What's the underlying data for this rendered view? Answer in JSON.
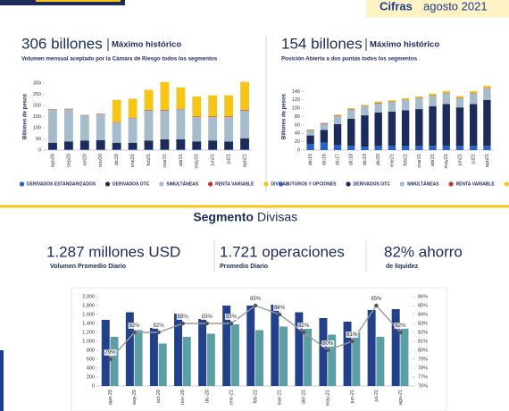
{
  "header": {
    "title_bold": "Cifras",
    "title_rest": "agosto 2021"
  },
  "chart_data": [
    {
      "type": "bar",
      "stacked": true,
      "title": "306 billones",
      "title_note": "Máximo histórico",
      "subtitle": "Volumen mensual aceptado por la Cámara de Riesgo todos los segmentos",
      "y_label": "Billones de pesos",
      "categories": [
        "ago20",
        "sep20",
        "oct20",
        "nov20",
        "dic20",
        "ene21",
        "feb21",
        "mar21",
        "abr21",
        "may21",
        "jun21",
        "jul21",
        "ago21"
      ],
      "series": [
        {
          "name": "DERIVADOS ESTANDARIZADOS",
          "color": "#2563c9",
          "values": [
            3,
            3,
            3,
            3,
            3,
            3,
            3,
            3,
            3,
            3,
            3,
            3,
            3
          ]
        },
        {
          "name": "DERIVADOS OTC",
          "color": "#1c2b5a",
          "values": [
            30,
            35,
            40,
            42,
            30,
            30,
            40,
            45,
            45,
            35,
            40,
            35,
            50
          ]
        },
        {
          "name": "SIMULTÁNEAS",
          "color": "#a7bccb",
          "values": [
            148,
            145,
            112,
            115,
            90,
            110,
            135,
            130,
            135,
            110,
            105,
            110,
            125
          ]
        },
        {
          "name": "RENTA VARIABLE",
          "color": "#c0392b",
          "values": [
            2,
            2,
            2,
            2,
            2,
            2,
            2,
            2,
            2,
            2,
            2,
            2,
            2
          ]
        },
        {
          "name": "DIVISAS",
          "color": "#f5c518",
          "values": [
            0,
            0,
            0,
            0,
            100,
            85,
            90,
            125,
            95,
            90,
            95,
            95,
            126
          ]
        }
      ],
      "ylim": [
        0,
        300
      ],
      "yticks": [
        0,
        50,
        100,
        150,
        200,
        250,
        300
      ],
      "grid": false,
      "legend": "bottom"
    },
    {
      "type": "bar",
      "stacked": true,
      "title": "154 billones",
      "title_note": "Máximo histórico",
      "subtitle": "Posición Abierta a dos puntas todos los segmentos",
      "y_label": "Billones de pesos",
      "categories": [
        "dic15",
        "dic16",
        "dic17",
        "dic18",
        "dic19",
        "dic20",
        "ene21",
        "feb21",
        "mar21",
        "abr21",
        "may21",
        "jun21",
        "jul21",
        "ago21"
      ],
      "series": [
        {
          "name": "FUTUROS Y OPCIONES",
          "color": "#2563c9",
          "values": [
            15,
            18,
            12,
            10,
            8,
            10,
            10,
            10,
            10,
            10,
            10,
            10,
            10,
            10
          ]
        },
        {
          "name": "DERIVADOS OTC",
          "color": "#1c2b5a",
          "values": [
            20,
            30,
            50,
            65,
            75,
            80,
            82,
            85,
            88,
            95,
            100,
            92,
            100,
            110
          ]
        },
        {
          "name": "SIMULTÁNEAS",
          "color": "#a7bccb",
          "values": [
            12,
            15,
            20,
            22,
            22,
            22,
            23,
            25,
            26,
            25,
            26,
            22,
            26,
            28
          ]
        },
        {
          "name": "RENTA VARIABLE",
          "color": "#c0392b",
          "values": [
            1,
            1,
            1,
            1,
            1,
            1,
            1,
            1,
            1,
            1,
            1,
            1,
            1,
            1
          ]
        },
        {
          "name": "DIVISAS",
          "color": "#f5c518",
          "values": [
            1,
            1,
            2,
            2,
            2,
            3,
            3,
            3,
            3,
            4,
            4,
            4,
            4,
            5
          ]
        }
      ],
      "ylim": [
        0,
        160
      ],
      "yticks": [
        0,
        20,
        40,
        60,
        80,
        100,
        120,
        140
      ],
      "grid": false,
      "legend": "bottom"
    },
    {
      "type": "bar",
      "stacked": false,
      "categories": [
        "ago-20",
        "sep-20",
        "oct-20",
        "nov-20",
        "dic-20",
        "ene-21",
        "feb-21",
        "mar-21",
        "abr-21",
        "may-21",
        "jun-21",
        "jul-21",
        "ago-21"
      ],
      "series": [
        {
          "color": "#22418a",
          "values": [
            1480,
            1650,
            1300,
            1620,
            1500,
            1800,
            1800,
            1820,
            1650,
            1520,
            1440,
            1700,
            1720
          ]
        },
        {
          "color": "#5c9ea3",
          "values": [
            1100,
            1250,
            950,
            1100,
            1170,
            1380,
            1250,
            1330,
            1280,
            1150,
            1200,
            1100,
            1290
          ]
        },
        {
          "type": "line",
          "axis": "y2",
          "color": "#9a9a9a",
          "values": [
            79,
            82,
            82,
            83,
            83,
            83,
            85,
            84,
            82,
            80,
            81,
            85,
            82
          ],
          "value_labels": [
            "79%",
            "82%",
            "82%",
            "83%",
            "83%",
            "83%",
            "85%",
            "84%",
            "82%",
            "80%",
            "81%",
            "85%",
            "82%"
          ]
        }
      ],
      "ylim": [
        0,
        2000
      ],
      "yticks": [
        0,
        {
          "value": 200,
          "label": "200"
        },
        {
          "value": 400,
          "label": "400"
        },
        {
          "value": 600,
          "label": "600"
        },
        {
          "value": 800,
          "label": "800"
        },
        {
          "value": 1000,
          "label": "1,000"
        },
        {
          "value": 1200,
          "label": "1,200"
        },
        {
          "value": 1400,
          "label": "1,400"
        },
        {
          "value": 1600,
          "label": "1,600"
        },
        {
          "value": 1800,
          "label": "1,800"
        },
        {
          "value": 2000,
          "label": "2,000"
        }
      ],
      "y2lim": [
        76,
        86
      ],
      "y2ticks": [
        {
          "value": 76,
          "label": "76%"
        },
        {
          "value": 77,
          "label": "77%"
        },
        {
          "value": 78,
          "label": "78%"
        },
        {
          "value": 79,
          "label": "79%"
        },
        {
          "value": 80,
          "label": "80%"
        },
        {
          "value": 81,
          "label": "81%"
        },
        {
          "value": 82,
          "label": "82%"
        },
        {
          "value": 83,
          "label": "83%"
        },
        {
          "value": 84,
          "label": "84%"
        },
        {
          "value": 85,
          "label": "85%"
        },
        {
          "value": 86,
          "label": "86%"
        }
      ],
      "grid": false
    }
  ],
  "segment": {
    "bold": "Segmento",
    "rest": "Divisas"
  },
  "kpis": [
    {
      "value": "1.287 millones USD",
      "label": "Volumen Promedio Diario"
    },
    {
      "value": "1.721 operaciones",
      "label": "Promedio Diario"
    },
    {
      "value": "82% ahorro",
      "label": "de liquidez"
    }
  ]
}
